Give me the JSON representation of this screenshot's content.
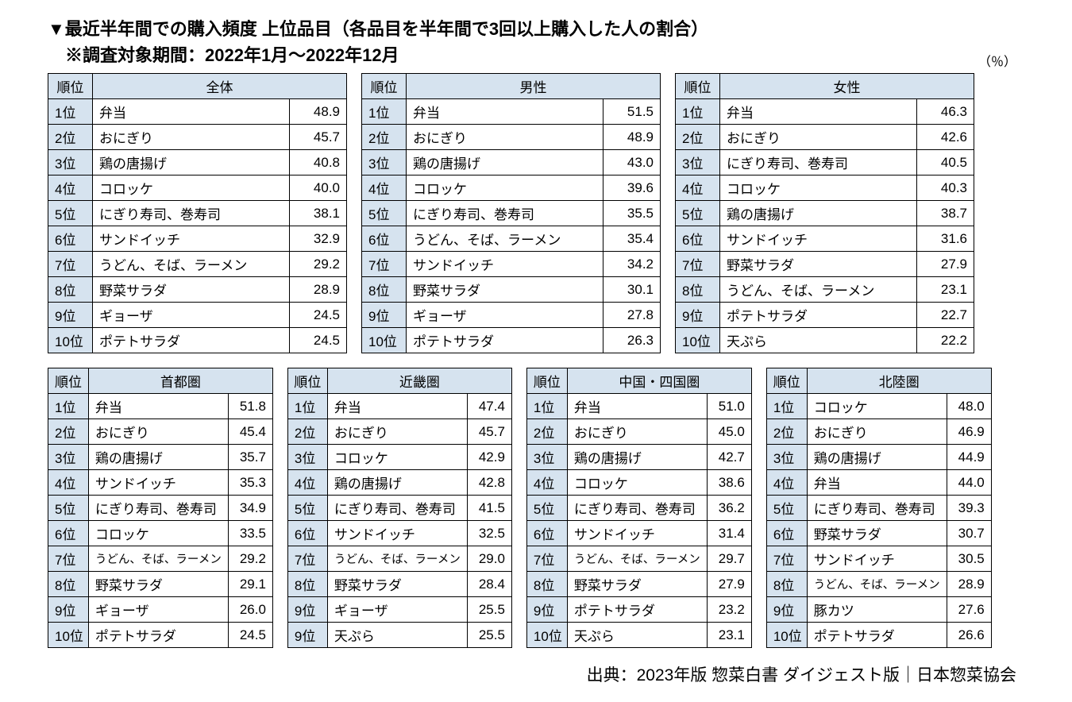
{
  "title_line1": "▼最近半年間での購入頻度 上位品目（各品目を半年間で3回以上購入した人の割合）",
  "title_line2": "　※調査対象期間：2022年1月〜2022年12月",
  "unit_label": "（％）",
  "header_rank": "順位",
  "rank_labels": [
    "1位",
    "2位",
    "3位",
    "4位",
    "5位",
    "6位",
    "7位",
    "8位",
    "9位",
    "10位"
  ],
  "row1": [
    {
      "title": "全体",
      "rows": [
        {
          "item": "弁当",
          "val": "48.9"
        },
        {
          "item": "おにぎり",
          "val": "45.7"
        },
        {
          "item": "鶏の唐揚げ",
          "val": "40.8"
        },
        {
          "item": "コロッケ",
          "val": "40.0"
        },
        {
          "item": "にぎり寿司、巻寿司",
          "val": "38.1"
        },
        {
          "item": "サンドイッチ",
          "val": "32.9"
        },
        {
          "item": "うどん、そば、ラーメン",
          "val": "29.2"
        },
        {
          "item": "野菜サラダ",
          "val": "28.9"
        },
        {
          "item": "ギョーザ",
          "val": "24.5"
        },
        {
          "item": "ポテトサラダ",
          "val": "24.5"
        }
      ]
    },
    {
      "title": "男性",
      "rows": [
        {
          "item": "弁当",
          "val": "51.5"
        },
        {
          "item": "おにぎり",
          "val": "48.9"
        },
        {
          "item": "鶏の唐揚げ",
          "val": "43.0"
        },
        {
          "item": "コロッケ",
          "val": "39.6"
        },
        {
          "item": "にぎり寿司、巻寿司",
          "val": "35.5"
        },
        {
          "item": "うどん、そば、ラーメン",
          "val": "35.4"
        },
        {
          "item": "サンドイッチ",
          "val": "34.2"
        },
        {
          "item": "野菜サラダ",
          "val": "30.1"
        },
        {
          "item": "ギョーザ",
          "val": "27.8"
        },
        {
          "item": "ポテトサラダ",
          "val": "26.3"
        }
      ]
    },
    {
      "title": "女性",
      "rows": [
        {
          "item": "弁当",
          "val": "46.3"
        },
        {
          "item": "おにぎり",
          "val": "42.6"
        },
        {
          "item": "にぎり寿司、巻寿司",
          "val": "40.5"
        },
        {
          "item": "コロッケ",
          "val": "40.3"
        },
        {
          "item": "鶏の唐揚げ",
          "val": "38.7"
        },
        {
          "item": "サンドイッチ",
          "val": "31.6"
        },
        {
          "item": "野菜サラダ",
          "val": "27.9"
        },
        {
          "item": "うどん、そば、ラーメン",
          "val": "23.1"
        },
        {
          "item": "ポテトサラダ",
          "val": "22.7"
        },
        {
          "item": "天ぷら",
          "val": "22.2"
        }
      ]
    }
  ],
  "row2": [
    {
      "title": "首都圏",
      "rank_labels": [
        "1位",
        "2位",
        "3位",
        "4位",
        "5位",
        "6位",
        "7位",
        "8位",
        "9位",
        "10位"
      ],
      "rows": [
        {
          "item": "弁当",
          "val": "51.8"
        },
        {
          "item": "おにぎり",
          "val": "45.4"
        },
        {
          "item": "鶏の唐揚げ",
          "val": "35.7"
        },
        {
          "item": "サンドイッチ",
          "val": "35.3"
        },
        {
          "item": "にぎり寿司、巻寿司",
          "val": "34.9"
        },
        {
          "item": "コロッケ",
          "val": "33.5"
        },
        {
          "item": "うどん、そば、ラーメン",
          "val": "29.2",
          "small": true
        },
        {
          "item": "野菜サラダ",
          "val": "29.1"
        },
        {
          "item": "ギョーザ",
          "val": "26.0"
        },
        {
          "item": "ポテトサラダ",
          "val": "24.5"
        }
      ]
    },
    {
      "title": "近畿圏",
      "rank_labels": [
        "1位",
        "2位",
        "3位",
        "4位",
        "5位",
        "6位",
        "7位",
        "8位",
        "9位",
        "9位"
      ],
      "rows": [
        {
          "item": "弁当",
          "val": "47.4"
        },
        {
          "item": "おにぎり",
          "val": "45.7"
        },
        {
          "item": "コロッケ",
          "val": "42.9"
        },
        {
          "item": "鶏の唐揚げ",
          "val": "42.8"
        },
        {
          "item": "にぎり寿司、巻寿司",
          "val": "41.5"
        },
        {
          "item": "サンドイッチ",
          "val": "32.5"
        },
        {
          "item": "うどん、そば、ラーメン",
          "val": "29.0",
          "small": true
        },
        {
          "item": "野菜サラダ",
          "val": "28.4"
        },
        {
          "item": "ギョーザ",
          "val": "25.5"
        },
        {
          "item": "天ぷら",
          "val": "25.5"
        }
      ]
    },
    {
      "title": "中国・四国圏",
      "rank_labels": [
        "1位",
        "2位",
        "3位",
        "4位",
        "5位",
        "6位",
        "7位",
        "8位",
        "9位",
        "10位"
      ],
      "rows": [
        {
          "item": "弁当",
          "val": "51.0"
        },
        {
          "item": "おにぎり",
          "val": "45.0"
        },
        {
          "item": "鶏の唐揚げ",
          "val": "42.7"
        },
        {
          "item": "コロッケ",
          "val": "38.6"
        },
        {
          "item": "にぎり寿司、巻寿司",
          "val": "36.2"
        },
        {
          "item": "サンドイッチ",
          "val": "31.4"
        },
        {
          "item": "うどん、そば、ラーメン",
          "val": "29.7",
          "small": true
        },
        {
          "item": "野菜サラダ",
          "val": "27.9"
        },
        {
          "item": "ポテトサラダ",
          "val": "23.2"
        },
        {
          "item": "天ぷら",
          "val": "23.1"
        }
      ]
    },
    {
      "title": "北陸圏",
      "rank_labels": [
        "1位",
        "2位",
        "3位",
        "4位",
        "5位",
        "6位",
        "7位",
        "8位",
        "9位",
        "10位"
      ],
      "rows": [
        {
          "item": "コロッケ",
          "val": "48.0"
        },
        {
          "item": "おにぎり",
          "val": "46.9"
        },
        {
          "item": "鶏の唐揚げ",
          "val": "44.9"
        },
        {
          "item": "弁当",
          "val": "44.0"
        },
        {
          "item": "にぎり寿司、巻寿司",
          "val": "39.3"
        },
        {
          "item": "野菜サラダ",
          "val": "30.7"
        },
        {
          "item": "サンドイッチ",
          "val": "30.5"
        },
        {
          "item": "うどん、そば、ラーメン",
          "val": "28.9",
          "small": true
        },
        {
          "item": "豚カツ",
          "val": "27.6"
        },
        {
          "item": "ポテトサラダ",
          "val": "26.6"
        }
      ]
    }
  ],
  "source": "出典：2023年版 惣菜白書 ダイジェスト版｜日本惣菜協会",
  "colors": {
    "header_bg": "#d6e3ef",
    "border": "#000000",
    "text": "#000000",
    "page_bg": "#ffffff"
  }
}
